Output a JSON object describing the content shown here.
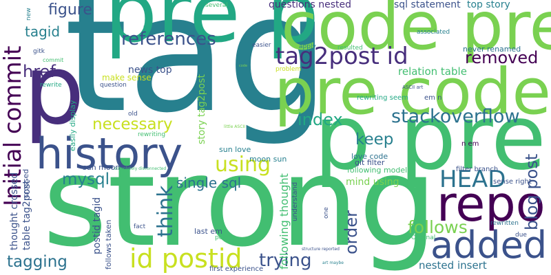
{
  "words": {
    "tag": "tag",
    "strong": "strong",
    "pre_p": "pre p",
    "code_pre": "code pre",
    "pre_code": "pre code",
    "p_pre": "p pre",
    "p": "p",
    "history": "history",
    "repo": "repo",
    "added": "added",
    "tag2post_id": "tag2post id",
    "id_postid": "id postid",
    "Initial_commit": "Initial commit",
    "references": "references",
    "figure": "figure",
    "tagid": "tagid",
    "href": "href",
    "removed": "removed",
    "stackoverflow": "stackoverflow",
    "HEAD": "HEAD",
    "index": "index",
    "keep": "keep",
    "using": "using",
    "necessary": "necessary",
    "think": "think",
    "mysql": "mysql",
    "single_sql": "single sql",
    "follows": "follows",
    "order": "order",
    "blog_post": "blog post",
    "trying": "trying",
    "tagging": "tagging",
    "relation_table": "relation table",
    "mind_using": "mind using",
    "following_model": "following model",
    "following_thought": "following thought",
    "nested_insert": "nested insert",
    "questions_nested": "questions nested",
    "sql_statement": "sql statement",
    "top_story": "top story",
    "news_top": "news top",
    "make_sense": "make sense",
    "story_tag2post": "story tag2post",
    "postid_tagid": "postid tagid",
    "table_tag2post": "table tag2post",
    "thought_crossed": "thought crossed",
    "never_renamed": "never renamed",
    "sun_love": "sun love",
    "moon_sun": "moon sun",
    "sun_moon": "sun moon",
    "love_code": "love code",
    "git_filter": "git filter",
    "filter_branch": "filter branch",
    "sense_right": "sense right",
    "last_em": "last em",
    "em_n": "em n",
    "n_em": "n em",
    "rewriting_seem": "rewriting seem",
    "easily_display": "easily display",
    "follows_taken": "follows taken",
    "first_experience": "first experience",
    "rewritten": "rewritten",
    "Original": "Original",
    "associated": "associated",
    "several": "several",
    "easier": "easier",
    "apply": "apply",
    "resulted": "resulted",
    "problem": "problem",
    "question": "question",
    "rewrite": "rewrite",
    "gitk": "gitk",
    "commit": "commit",
    "new": "new",
    "old": "old",
    "rewriting": "rewriting",
    "fact": "fact",
    "point": "point",
    "due": "due",
    "one": "one",
    "understand": "understand",
    "crossed": "crossed",
    "ASCII_art": "ASCII art",
    "little_ASCII": "little ASCII",
    "code": "code",
    "completely_disconnected": "completely disconnected",
    "structure_reported": "structure reported",
    "art_maybe": "art maybe"
  },
  "colors": {
    "teal": "#27808e",
    "green": "#42be71",
    "lime": "#7ad151",
    "yellow": "#c8e020",
    "purple": "#440154",
    "indigo": "#472e7c",
    "blue": "#3b528b",
    "midblue": "#2c728e",
    "sea": "#22a884",
    "aqua": "#1fa187"
  }
}
